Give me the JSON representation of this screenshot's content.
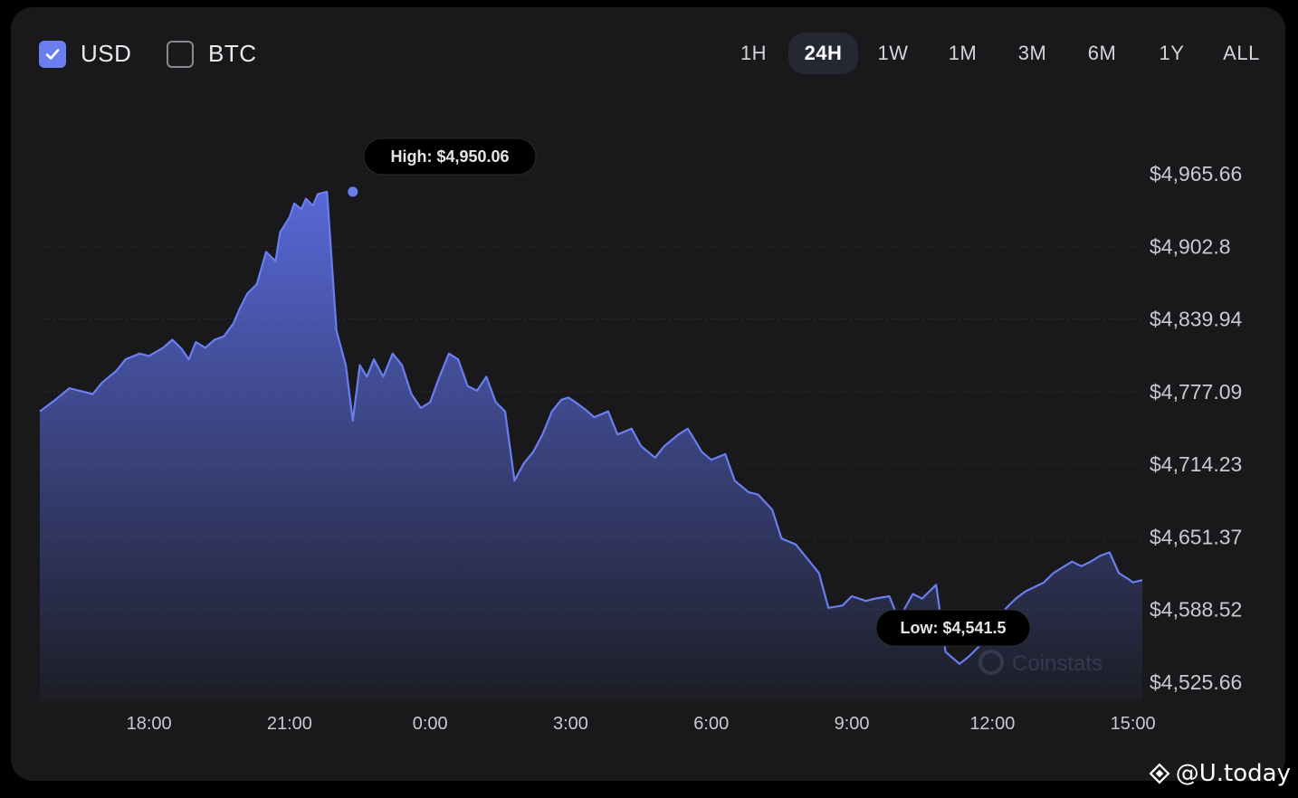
{
  "toggles": {
    "usd": {
      "label": "USD",
      "checked": true
    },
    "btc": {
      "label": "BTC",
      "checked": false
    }
  },
  "ranges": [
    {
      "label": "1H",
      "active": false
    },
    {
      "label": "24H",
      "active": true
    },
    {
      "label": "1W",
      "active": false
    },
    {
      "label": "1M",
      "active": false
    },
    {
      "label": "3M",
      "active": false
    },
    {
      "label": "6M",
      "active": false
    },
    {
      "label": "1Y",
      "active": false
    },
    {
      "label": "ALL",
      "active": false
    }
  ],
  "watermark": {
    "text": "@U.today",
    "icon": "diamond-logo-icon"
  },
  "brand_text": "Coinstats",
  "colors": {
    "line": "#6a7ef0",
    "area_top": "#5b6ce0",
    "background": "#19191b",
    "tooltip_bg": "#000000"
  },
  "chart_data": {
    "type": "area",
    "xlabel": "",
    "ylabel": "",
    "ylim": [
      4525.66,
      4965.66
    ],
    "x_ticks": [
      "18:00",
      "21:00",
      "0:00",
      "3:00",
      "6:00",
      "9:00",
      "12:00",
      "15:00"
    ],
    "y_ticks": [
      "$4,965.66",
      "$4,902.8",
      "$4,839.94",
      "$4,777.09",
      "$4,714.23",
      "$4,651.37",
      "$4,588.52",
      "$4,525.66"
    ],
    "grid": "horizontal",
    "high": {
      "label": "High: $4,950.06",
      "value": 4950.06,
      "time": 22.35
    },
    "low": {
      "label": "Low: $4,541.5",
      "value": 4541.5,
      "time": 13.75
    },
    "series": [
      {
        "x": [
          15.67,
          16.0,
          16.3,
          16.5,
          16.8,
          17.0,
          17.3,
          17.5,
          17.8,
          18.0,
          18.3,
          18.5,
          18.7,
          18.85,
          19.0,
          19.2,
          19.4,
          19.6,
          19.8,
          19.95,
          20.1,
          20.3,
          20.5,
          20.7,
          20.8,
          21.0,
          21.1,
          21.25,
          21.35,
          21.5,
          21.6,
          21.8,
          22.0,
          22.2,
          22.35,
          22.5,
          22.65,
          22.8,
          23.0,
          23.2,
          23.4,
          23.6,
          23.8,
          24.0,
          24.2,
          24.4,
          24.6,
          24.8,
          25.0,
          25.2,
          25.4,
          25.6,
          25.8,
          26.0,
          26.2,
          26.4,
          26.6,
          26.8,
          26.95,
          27.1,
          27.3,
          27.5,
          27.8,
          28.0,
          28.3,
          28.5,
          28.8,
          29.0,
          29.3,
          29.5,
          29.8,
          30.0,
          30.3,
          30.5,
          30.8,
          31.0,
          31.3,
          31.5,
          31.8,
          32.0,
          32.3,
          32.5,
          32.8,
          33.0,
          33.3,
          33.5,
          33.8,
          34.0,
          34.3,
          34.5,
          34.8,
          35.0,
          35.3,
          35.5,
          35.8,
          36.0,
          36.3,
          36.5,
          36.7,
          36.9,
          37.1,
          37.3,
          37.5,
          37.7,
          37.9,
          38.1,
          38.3,
          38.5,
          38.7,
          38.9,
          39.0,
          39.2
        ],
        "values": [
          4760,
          4770,
          4780,
          4778,
          4775,
          4785,
          4795,
          4805,
          4810,
          4808,
          4815,
          4822,
          4814,
          4805,
          4820,
          4815,
          4822,
          4825,
          4836,
          4850,
          4862,
          4870,
          4898,
          4890,
          4915,
          4928,
          4940,
          4935,
          4944,
          4938,
          4948,
          4950.06,
          4830,
          4800,
          4752,
          4800,
          4790,
          4805,
          4790,
          4810,
          4800,
          4775,
          4763,
          4768,
          4790,
          4810,
          4805,
          4782,
          4778,
          4790,
          4768,
          4760,
          4700,
          4715,
          4725,
          4740,
          4760,
          4770,
          4772,
          4768,
          4762,
          4755,
          4760,
          4740,
          4745,
          4730,
          4720,
          4730,
          4740,
          4745,
          4725,
          4718,
          4723,
          4700,
          4690,
          4688,
          4675,
          4650,
          4645,
          4635,
          4620,
          4590,
          4592,
          4600,
          4596,
          4598,
          4600,
          4580,
          4602,
          4598,
          4610,
          4552,
          4541.5,
          4548,
          4560,
          4575,
          4590,
          4598,
          4604,
          4608,
          4612,
          4620,
          4625,
          4630,
          4626,
          4630,
          4635,
          4638,
          4620,
          4615,
          4612,
          4614
        ]
      }
    ]
  }
}
